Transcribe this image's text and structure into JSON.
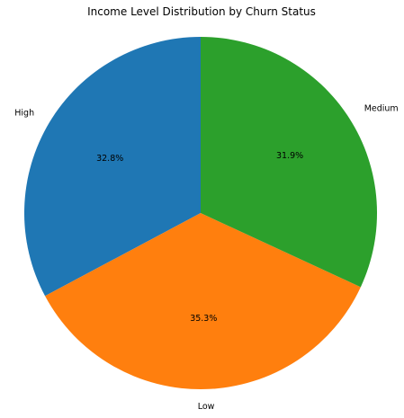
{
  "chart_data": {
    "type": "pie",
    "title": "Income Level Distribution by Churn Status",
    "categories": [
      "High",
      "Low",
      "Medium"
    ],
    "values": [
      32.8,
      35.3,
      31.9
    ],
    "percent_labels": [
      "32.8%",
      "35.3%",
      "31.9%"
    ],
    "colors": [
      "#1f77b4",
      "#ff7f0e",
      "#2ca02c"
    ],
    "start_angle_deg": 90,
    "direction": "counterclockwise",
    "legend": "none"
  }
}
